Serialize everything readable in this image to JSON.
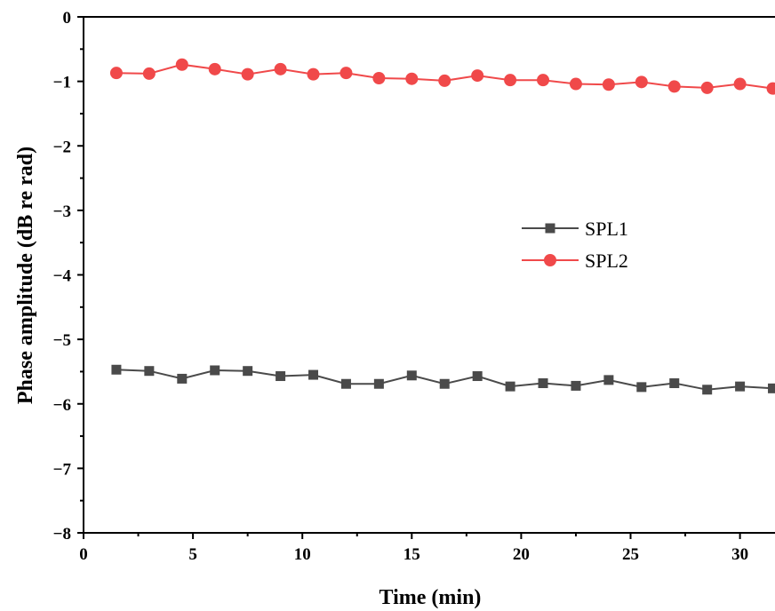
{
  "chart_data": {
    "type": "line",
    "xlabel": "Time (min)",
    "ylabel": "Phase amplitude (dB re rad)",
    "xlim": [
      0,
      31.6
    ],
    "ylim": [
      -8,
      0
    ],
    "x_ticks": [
      0,
      5,
      10,
      15,
      20,
      25,
      30
    ],
    "x_tick_labels": [
      "0",
      "5",
      "10",
      "15",
      "20",
      "25",
      "30"
    ],
    "y_ticks": [
      0,
      -1,
      -2,
      -3,
      -4,
      -5,
      -6,
      -7,
      -8
    ],
    "y_tick_labels": [
      "0",
      "−1",
      "−2",
      "−3",
      "−4",
      "−5",
      "−6",
      "−7",
      "−8"
    ],
    "legend_position": "middle-right",
    "x": [
      1.5,
      3,
      4.5,
      6,
      7.5,
      9,
      10.5,
      12,
      13.5,
      15,
      16.5,
      18,
      19.5,
      21,
      22.5,
      24,
      25.5,
      27,
      28.5,
      30,
      31.5
    ],
    "series": [
      {
        "name": "SPL1",
        "color": "#4a4a4a",
        "marker": "square",
        "values": [
          -5.47,
          -5.49,
          -5.61,
          -5.48,
          -5.49,
          -5.57,
          -5.55,
          -5.69,
          -5.69,
          -5.56,
          -5.69,
          -5.57,
          -5.73,
          -5.68,
          -5.72,
          -5.63,
          -5.74,
          -5.68,
          -5.78,
          -5.73,
          -5.76
        ]
      },
      {
        "name": "SPL2",
        "color": "#f0494a",
        "marker": "circle",
        "values": [
          -0.87,
          -0.88,
          -0.74,
          -0.81,
          -0.89,
          -0.81,
          -0.89,
          -0.87,
          -0.95,
          -0.96,
          -0.99,
          -0.91,
          -0.98,
          -0.98,
          -1.04,
          -1.05,
          -1.01,
          -1.08,
          -1.1,
          -1.04,
          -1.11
        ]
      }
    ]
  }
}
